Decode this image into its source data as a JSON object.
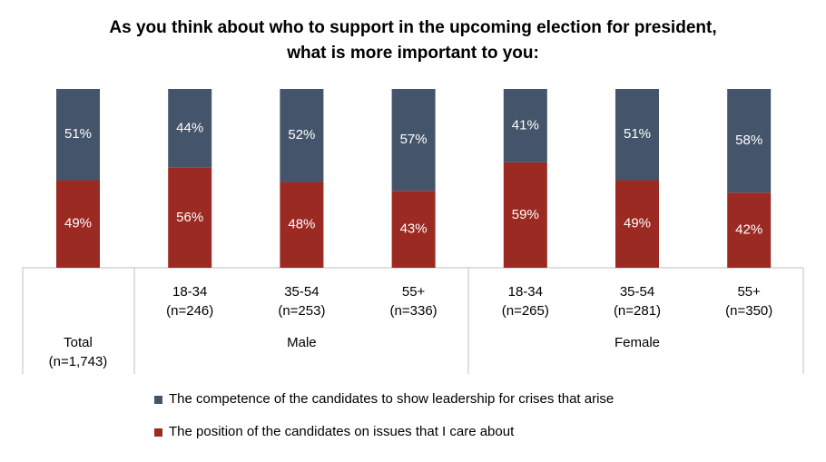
{
  "chart_data": {
    "type": "stacked_bar",
    "title": [
      "As you think about who to support in the upcoming election for president,",
      "what is more important to you:"
    ],
    "categories": [
      [
        "Total",
        "(n=1,743)"
      ],
      [
        "18-34",
        "(n=246)"
      ],
      [
        "35-54",
        "(n=253)"
      ],
      [
        "55+",
        "(n=336)"
      ],
      [
        "18-34",
        "(n=265)"
      ],
      [
        "35-54",
        "(n=281)"
      ],
      [
        "55+",
        "(n=350)"
      ]
    ],
    "groups": [
      "Male",
      "Female"
    ],
    "series": [
      {
        "name": "The competence of the candidates to show leadership for crises that arise",
        "color": "#44546a",
        "values": [
          51,
          44,
          52,
          57,
          41,
          51,
          58
        ],
        "value_labels": [
          "51%",
          "44%",
          "52%",
          "57%",
          "41%",
          "51%",
          "58%"
        ]
      },
      {
        "name": "The position of the candidates on issues that I care about",
        "color": "#9b2a22",
        "values": [
          49,
          56,
          48,
          43,
          59,
          49,
          42
        ],
        "value_labels": [
          "49%",
          "56%",
          "48%",
          "43%",
          "59%",
          "49%",
          "42%"
        ]
      }
    ],
    "ylim": [
      0,
      100
    ]
  }
}
